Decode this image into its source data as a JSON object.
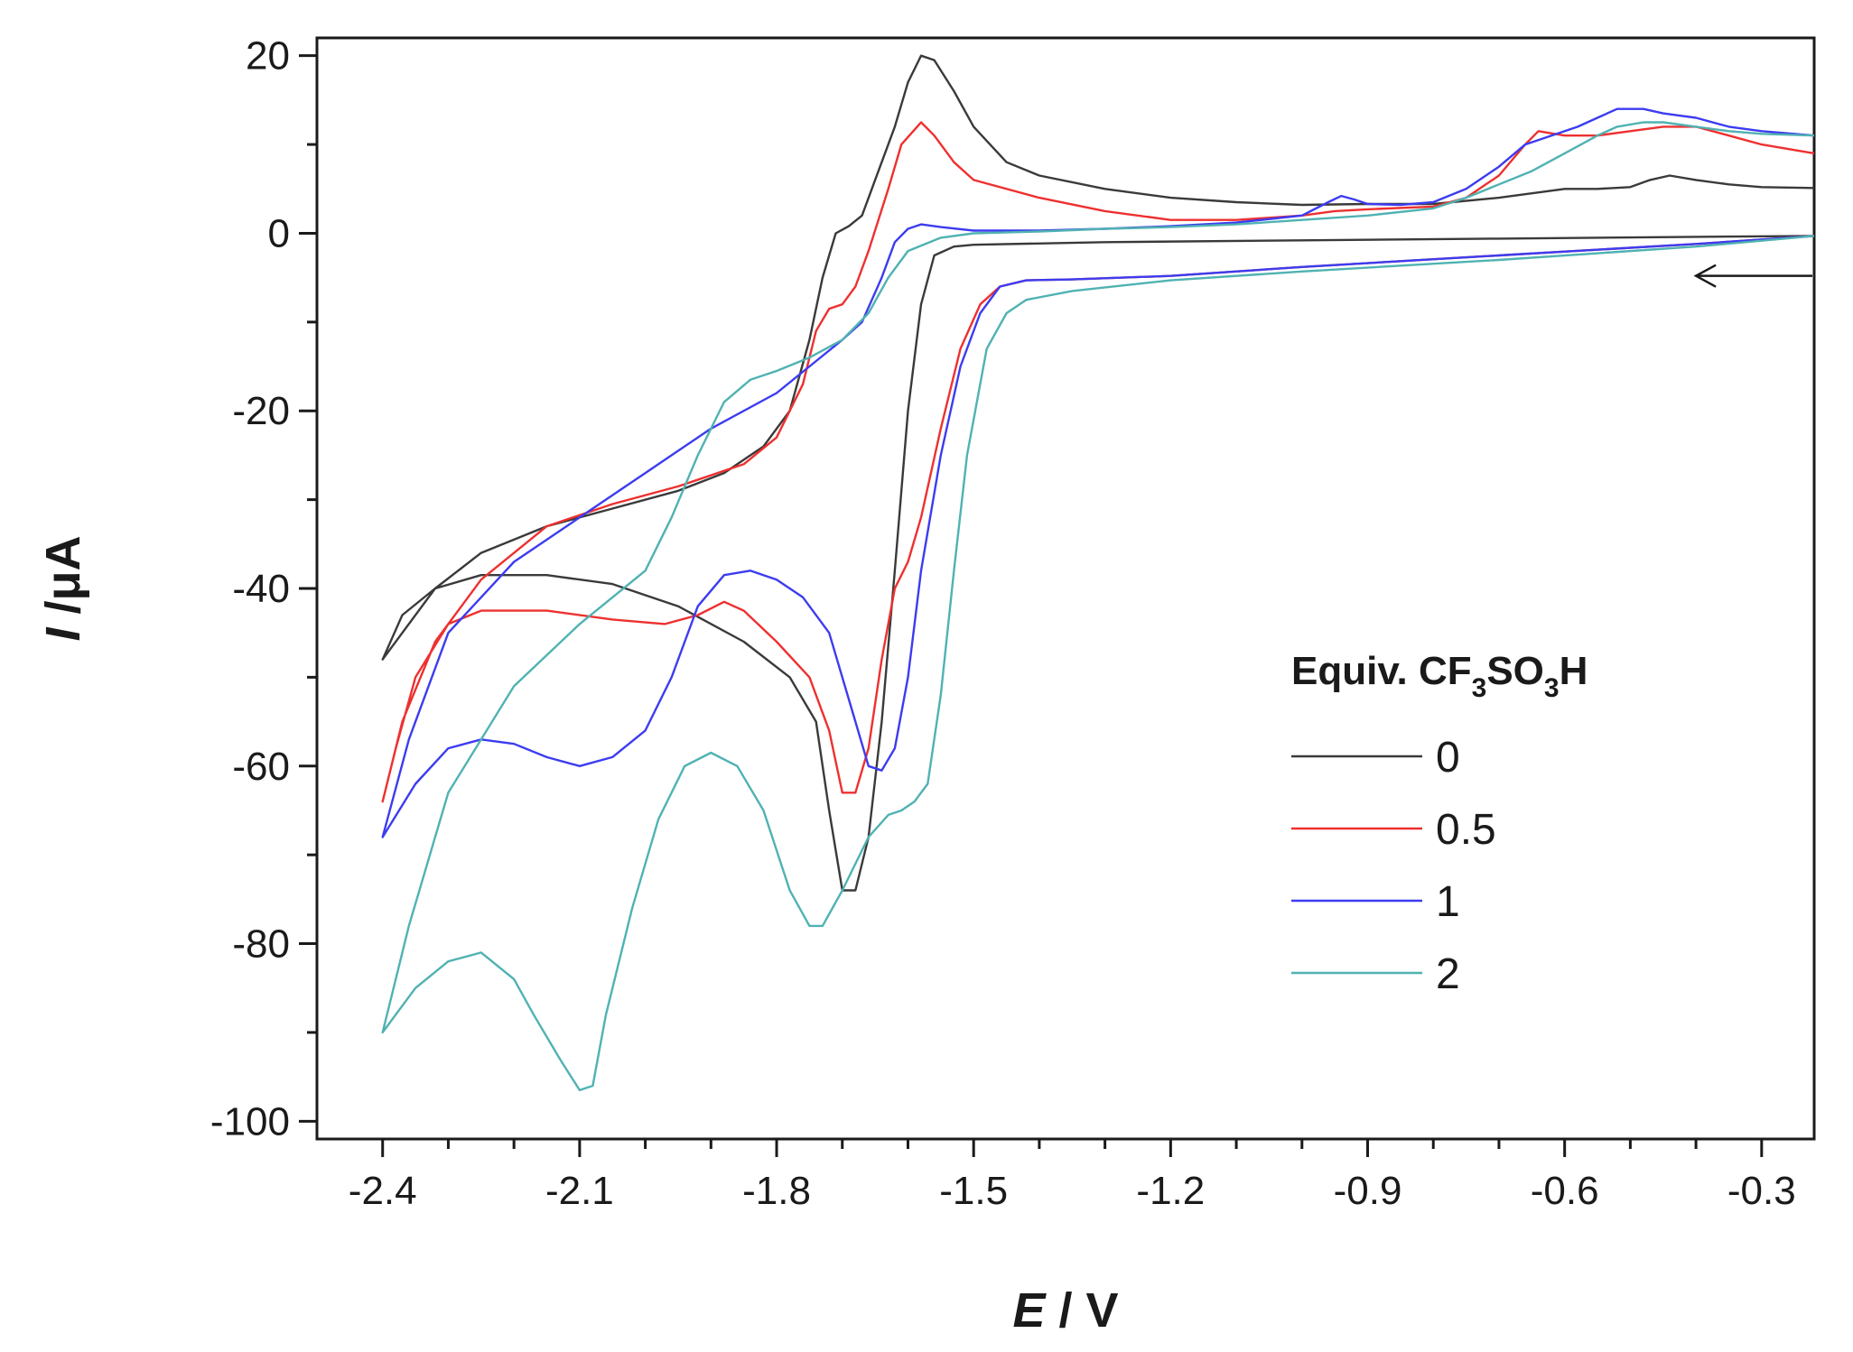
{
  "chart_data": {
    "type": "line",
    "xlabel": {
      "symbol": "E",
      "unit": " / V"
    },
    "ylabel": {
      "symbol": "I",
      "unit": " /μA"
    },
    "xlim": [
      -2.5,
      -0.22
    ],
    "ylim": [
      -102,
      22
    ],
    "x_ticks": [
      -2.4,
      -2.1,
      -1.8,
      -1.5,
      -1.2,
      -0.9,
      -0.6,
      -0.3
    ],
    "x_tick_labels": [
      "-2.4",
      "-2.1",
      "-1.8",
      "-1.5",
      "-1.2",
      "-0.9",
      "-0.6",
      "-0.3"
    ],
    "y_ticks": [
      -100,
      -80,
      -60,
      -40,
      -20,
      0,
      20
    ],
    "y_tick_labels": [
      "-100",
      "-80",
      "-60",
      "-40",
      "-20",
      "0",
      "20"
    ],
    "grid": false,
    "legend": {
      "position": "right",
      "title": {
        "main": "Equiv. CF",
        "sub1": "3",
        "mid": "SO",
        "sub2": "3",
        "end": "H"
      }
    },
    "annotation": {
      "type": "arrow",
      "direction": "left",
      "at": {
        "x": -0.22,
        "y": -4.8
      },
      "to": {
        "x": -0.4,
        "y": -4.8
      }
    },
    "series": [
      {
        "name": "0",
        "color": "#3a3a3a",
        "points": [
          [
            -0.22,
            -0.3
          ],
          [
            -0.4,
            -0.4
          ],
          [
            -0.7,
            -0.6
          ],
          [
            -1.0,
            -0.8
          ],
          [
            -1.3,
            -1.0
          ],
          [
            -1.5,
            -1.3
          ],
          [
            -1.53,
            -1.5
          ],
          [
            -1.56,
            -2.5
          ],
          [
            -1.58,
            -8
          ],
          [
            -1.6,
            -20
          ],
          [
            -1.62,
            -38
          ],
          [
            -1.64,
            -55
          ],
          [
            -1.66,
            -68
          ],
          [
            -1.68,
            -74
          ],
          [
            -1.7,
            -74
          ],
          [
            -1.72,
            -65
          ],
          [
            -1.74,
            -55
          ],
          [
            -1.78,
            -50
          ],
          [
            -1.85,
            -46
          ],
          [
            -1.95,
            -42
          ],
          [
            -2.05,
            -39.5
          ],
          [
            -2.15,
            -38.5
          ],
          [
            -2.25,
            -38.5
          ],
          [
            -2.32,
            -40
          ],
          [
            -2.37,
            -43
          ],
          [
            -2.4,
            -48
          ],
          [
            -2.37,
            -45
          ],
          [
            -2.32,
            -40
          ],
          [
            -2.25,
            -36
          ],
          [
            -2.15,
            -33
          ],
          [
            -2.05,
            -31
          ],
          [
            -1.95,
            -29
          ],
          [
            -1.88,
            -27
          ],
          [
            -1.82,
            -24
          ],
          [
            -1.78,
            -20
          ],
          [
            -1.75,
            -12
          ],
          [
            -1.73,
            -5
          ],
          [
            -1.71,
            0
          ],
          [
            -1.69,
            0.8
          ],
          [
            -1.67,
            2
          ],
          [
            -1.65,
            6
          ],
          [
            -1.62,
            12
          ],
          [
            -1.6,
            17
          ],
          [
            -1.58,
            20
          ],
          [
            -1.56,
            19.5
          ],
          [
            -1.53,
            16
          ],
          [
            -1.5,
            12
          ],
          [
            -1.45,
            8
          ],
          [
            -1.4,
            6.5
          ],
          [
            -1.3,
            5
          ],
          [
            -1.2,
            4
          ],
          [
            -1.1,
            3.5
          ],
          [
            -1.0,
            3.2
          ],
          [
            -0.9,
            3.3
          ],
          [
            -0.8,
            3.3
          ],
          [
            -0.7,
            4
          ],
          [
            -0.65,
            4.5
          ],
          [
            -0.6,
            5
          ],
          [
            -0.55,
            5
          ],
          [
            -0.5,
            5.2
          ],
          [
            -0.47,
            6
          ],
          [
            -0.44,
            6.5
          ],
          [
            -0.4,
            6
          ],
          [
            -0.35,
            5.5
          ],
          [
            -0.3,
            5.2
          ],
          [
            -0.22,
            5.1
          ]
        ]
      },
      {
        "name": "0.5",
        "color": "#ee3030",
        "points": [
          [
            -0.22,
            -0.3
          ],
          [
            -0.4,
            -1.2
          ],
          [
            -0.7,
            -2.5
          ],
          [
            -1.0,
            -3.8
          ],
          [
            -1.2,
            -4.8
          ],
          [
            -1.35,
            -5.2
          ],
          [
            -1.42,
            -5.3
          ],
          [
            -1.46,
            -6
          ],
          [
            -1.49,
            -8
          ],
          [
            -1.52,
            -13
          ],
          [
            -1.55,
            -22
          ],
          [
            -1.58,
            -32
          ],
          [
            -1.6,
            -37
          ],
          [
            -1.62,
            -40
          ],
          [
            -1.64,
            -48
          ],
          [
            -1.66,
            -58
          ],
          [
            -1.68,
            -63
          ],
          [
            -1.7,
            -63
          ],
          [
            -1.72,
            -56
          ],
          [
            -1.75,
            -50
          ],
          [
            -1.8,
            -46
          ],
          [
            -1.85,
            -42.5
          ],
          [
            -1.88,
            -41.5
          ],
          [
            -1.92,
            -43
          ],
          [
            -1.97,
            -44
          ],
          [
            -2.05,
            -43.5
          ],
          [
            -2.15,
            -42.5
          ],
          [
            -2.25,
            -42.5
          ],
          [
            -2.3,
            -44
          ],
          [
            -2.35,
            -50
          ],
          [
            -2.38,
            -58
          ],
          [
            -2.4,
            -64
          ],
          [
            -2.37,
            -55
          ],
          [
            -2.32,
            -46
          ],
          [
            -2.25,
            -39
          ],
          [
            -2.15,
            -33
          ],
          [
            -2.05,
            -30.5
          ],
          [
            -1.95,
            -28.5
          ],
          [
            -1.85,
            -26
          ],
          [
            -1.8,
            -23
          ],
          [
            -1.76,
            -17
          ],
          [
            -1.74,
            -11
          ],
          [
            -1.72,
            -8.5
          ],
          [
            -1.7,
            -8
          ],
          [
            -1.68,
            -6
          ],
          [
            -1.66,
            -2
          ],
          [
            -1.63,
            5
          ],
          [
            -1.61,
            10
          ],
          [
            -1.58,
            12.5
          ],
          [
            -1.56,
            11
          ],
          [
            -1.53,
            8
          ],
          [
            -1.5,
            6
          ],
          [
            -1.4,
            4
          ],
          [
            -1.3,
            2.5
          ],
          [
            -1.2,
            1.5
          ],
          [
            -1.1,
            1.5
          ],
          [
            -1.0,
            2
          ],
          [
            -0.95,
            2.5
          ],
          [
            -0.9,
            2.7
          ],
          [
            -0.8,
            3
          ],
          [
            -0.75,
            4
          ],
          [
            -0.7,
            6.5
          ],
          [
            -0.66,
            10
          ],
          [
            -0.64,
            11.5
          ],
          [
            -0.6,
            11
          ],
          [
            -0.55,
            11
          ],
          [
            -0.5,
            11.5
          ],
          [
            -0.45,
            12
          ],
          [
            -0.4,
            12
          ],
          [
            -0.35,
            11
          ],
          [
            -0.3,
            10
          ],
          [
            -0.22,
            9
          ]
        ]
      },
      {
        "name": "1",
        "color": "#3c3cf0",
        "points": [
          [
            -0.22,
            -0.3
          ],
          [
            -0.4,
            -1.2
          ],
          [
            -0.7,
            -2.5
          ],
          [
            -1.0,
            -3.8
          ],
          [
            -1.2,
            -4.8
          ],
          [
            -1.35,
            -5.2
          ],
          [
            -1.42,
            -5.3
          ],
          [
            -1.46,
            -6
          ],
          [
            -1.49,
            -9
          ],
          [
            -1.52,
            -15
          ],
          [
            -1.55,
            -25
          ],
          [
            -1.58,
            -38
          ],
          [
            -1.6,
            -50
          ],
          [
            -1.62,
            -58
          ],
          [
            -1.64,
            -60.5
          ],
          [
            -1.66,
            -60
          ],
          [
            -1.68,
            -55
          ],
          [
            -1.72,
            -45
          ],
          [
            -1.76,
            -41
          ],
          [
            -1.8,
            -39
          ],
          [
            -1.84,
            -38
          ],
          [
            -1.88,
            -38.5
          ],
          [
            -1.92,
            -42
          ],
          [
            -1.96,
            -50
          ],
          [
            -2.0,
            -56
          ],
          [
            -2.05,
            -59
          ],
          [
            -2.1,
            -60
          ],
          [
            -2.15,
            -59
          ],
          [
            -2.2,
            -57.5
          ],
          [
            -2.25,
            -57
          ],
          [
            -2.3,
            -58
          ],
          [
            -2.35,
            -62
          ],
          [
            -2.4,
            -68
          ],
          [
            -2.36,
            -57
          ],
          [
            -2.3,
            -45
          ],
          [
            -2.2,
            -37
          ],
          [
            -2.1,
            -32
          ],
          [
            -2.0,
            -27
          ],
          [
            -1.9,
            -22
          ],
          [
            -1.8,
            -18
          ],
          [
            -1.75,
            -15
          ],
          [
            -1.7,
            -12
          ],
          [
            -1.67,
            -10
          ],
          [
            -1.64,
            -5
          ],
          [
            -1.62,
            -1
          ],
          [
            -1.6,
            0.5
          ],
          [
            -1.58,
            1
          ],
          [
            -1.55,
            0.7
          ],
          [
            -1.5,
            0.3
          ],
          [
            -1.4,
            0.3
          ],
          [
            -1.3,
            0.5
          ],
          [
            -1.2,
            0.8
          ],
          [
            -1.1,
            1.2
          ],
          [
            -1.0,
            2
          ],
          [
            -0.96,
            3.5
          ],
          [
            -0.94,
            4.2
          ],
          [
            -0.92,
            3.8
          ],
          [
            -0.9,
            3.3
          ],
          [
            -0.85,
            3.2
          ],
          [
            -0.8,
            3.5
          ],
          [
            -0.75,
            5
          ],
          [
            -0.7,
            7.5
          ],
          [
            -0.66,
            10
          ],
          [
            -0.62,
            11
          ],
          [
            -0.58,
            12
          ],
          [
            -0.55,
            13
          ],
          [
            -0.52,
            14
          ],
          [
            -0.48,
            14
          ],
          [
            -0.45,
            13.5
          ],
          [
            -0.4,
            13
          ],
          [
            -0.35,
            12
          ],
          [
            -0.3,
            11.5
          ],
          [
            -0.22,
            11
          ]
        ]
      },
      {
        "name": "2",
        "color": "#50b2b2",
        "points": [
          [
            -0.22,
            -0.3
          ],
          [
            -0.4,
            -1.5
          ],
          [
            -0.7,
            -3
          ],
          [
            -1.0,
            -4.3
          ],
          [
            -1.2,
            -5.3
          ],
          [
            -1.35,
            -6.5
          ],
          [
            -1.42,
            -7.5
          ],
          [
            -1.45,
            -9
          ],
          [
            -1.48,
            -13
          ],
          [
            -1.51,
            -25
          ],
          [
            -1.53,
            -38
          ],
          [
            -1.55,
            -52
          ],
          [
            -1.57,
            -62
          ],
          [
            -1.59,
            -64
          ],
          [
            -1.61,
            -65
          ],
          [
            -1.63,
            -65.5
          ],
          [
            -1.66,
            -68
          ],
          [
            -1.7,
            -74
          ],
          [
            -1.73,
            -78
          ],
          [
            -1.75,
            -78
          ],
          [
            -1.78,
            -74
          ],
          [
            -1.82,
            -65
          ],
          [
            -1.86,
            -60
          ],
          [
            -1.9,
            -58.5
          ],
          [
            -1.94,
            -60
          ],
          [
            -1.98,
            -66
          ],
          [
            -2.02,
            -76
          ],
          [
            -2.06,
            -88
          ],
          [
            -2.08,
            -96
          ],
          [
            -2.1,
            -96.5
          ],
          [
            -2.13,
            -93
          ],
          [
            -2.17,
            -88
          ],
          [
            -2.2,
            -84
          ],
          [
            -2.25,
            -81
          ],
          [
            -2.3,
            -82
          ],
          [
            -2.35,
            -85
          ],
          [
            -2.4,
            -90
          ],
          [
            -2.36,
            -78
          ],
          [
            -2.3,
            -63
          ],
          [
            -2.2,
            -51
          ],
          [
            -2.1,
            -44
          ],
          [
            -2.0,
            -38
          ],
          [
            -1.96,
            -32
          ],
          [
            -1.92,
            -25
          ],
          [
            -1.88,
            -19
          ],
          [
            -1.84,
            -16.5
          ],
          [
            -1.8,
            -15.5
          ],
          [
            -1.75,
            -14
          ],
          [
            -1.7,
            -12
          ],
          [
            -1.66,
            -9
          ],
          [
            -1.63,
            -5
          ],
          [
            -1.6,
            -2
          ],
          [
            -1.55,
            -0.5
          ],
          [
            -1.5,
            0
          ],
          [
            -1.4,
            0.2
          ],
          [
            -1.3,
            0.5
          ],
          [
            -1.2,
            0.7
          ],
          [
            -1.1,
            1
          ],
          [
            -1.0,
            1.5
          ],
          [
            -0.9,
            2
          ],
          [
            -0.8,
            2.8
          ],
          [
            -0.75,
            4
          ],
          [
            -0.7,
            5.5
          ],
          [
            -0.65,
            7
          ],
          [
            -0.6,
            9
          ],
          [
            -0.55,
            11
          ],
          [
            -0.52,
            12
          ],
          [
            -0.48,
            12.5
          ],
          [
            -0.45,
            12.5
          ],
          [
            -0.4,
            12
          ],
          [
            -0.35,
            11.5
          ],
          [
            -0.3,
            11.2
          ],
          [
            -0.22,
            11
          ]
        ]
      }
    ]
  }
}
